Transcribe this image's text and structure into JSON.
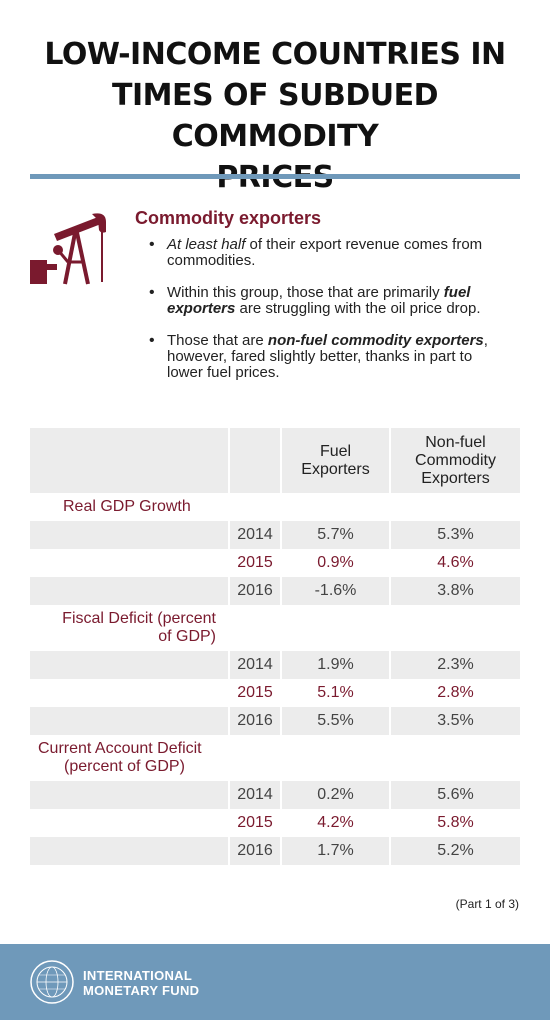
{
  "title": [
    "LOW-INCOME COUNTRIES IN",
    "TIMES OF SUBDUED COMMODITY",
    "PRICES"
  ],
  "section": {
    "heading": "Commodity exporters",
    "icon": "oil-pump-icon",
    "bullets": [
      {
        "em": "At least half",
        "rest": " of their export revenue comes from commodities."
      },
      {
        "pre": "Within this group, those that are primarily ",
        "em": "fuel exporters",
        "rest": " are struggling with the oil price drop."
      },
      {
        "pre": "Those that are ",
        "em": "non-fuel commodity exporters",
        "rest": ", however, fared slightly better, thanks in part to lower fuel prices."
      }
    ]
  },
  "table": {
    "columns": [
      [
        "Fuel",
        "Exporters"
      ],
      [
        "Non-fuel",
        "Commodity",
        "Exporters"
      ]
    ],
    "indicators": [
      {
        "label": [
          "Real GDP Growth"
        ],
        "rows": [
          {
            "year": "2014",
            "fuel": "5.7%",
            "nonfuel": "5.3%"
          },
          {
            "year": "2015",
            "fuel": "0.9%",
            "nonfuel": "4.6%"
          },
          {
            "year": "2016",
            "fuel": "-1.6%",
            "nonfuel": "3.8%"
          }
        ]
      },
      {
        "label": [
          "Fiscal Deficit (percent",
          "of GDP)"
        ],
        "rows": [
          {
            "year": "2014",
            "fuel": "1.9%",
            "nonfuel": "2.3%"
          },
          {
            "year": "2015",
            "fuel": "5.1%",
            "nonfuel": "2.8%"
          },
          {
            "year": "2016",
            "fuel": "5.5%",
            "nonfuel": "3.5%"
          }
        ]
      },
      {
        "label": [
          "Current Account Deficit",
          "(percent of GDP)"
        ],
        "rows": [
          {
            "year": "2014",
            "fuel": "0.2%",
            "nonfuel": "5.6%"
          },
          {
            "year": "2015",
            "fuel": "4.2%",
            "nonfuel": "5.8%"
          },
          {
            "year": "2016",
            "fuel": "1.7%",
            "nonfuel": "5.2%"
          }
        ]
      }
    ]
  },
  "part": "(Part 1 of 3)",
  "footer": {
    "org": [
      "INTERNATIONAL",
      "MONETARY FUND"
    ],
    "seal": "imf-seal-icon"
  },
  "colors": {
    "accent": "#7a1a2e",
    "rule": "#6f99ba",
    "shade": "#ececec"
  }
}
